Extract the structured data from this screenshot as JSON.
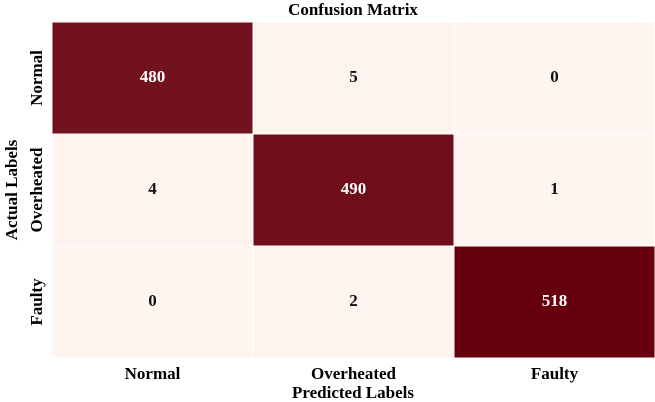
{
  "chart_data": {
    "type": "heatmap",
    "title": "Confusion Matrix",
    "x_label": "Predicted Labels",
    "y_label": "Actual Labels",
    "x_categories": [
      "Normal",
      "Overheated",
      "Faulty"
    ],
    "y_categories": [
      "Normal",
      "Overheated",
      "Faulty"
    ],
    "values": [
      [
        480,
        5,
        0
      ],
      [
        4,
        490,
        1
      ],
      [
        0,
        2,
        518
      ]
    ],
    "color_range": [
      "#fff5f0",
      "#67000d"
    ]
  }
}
